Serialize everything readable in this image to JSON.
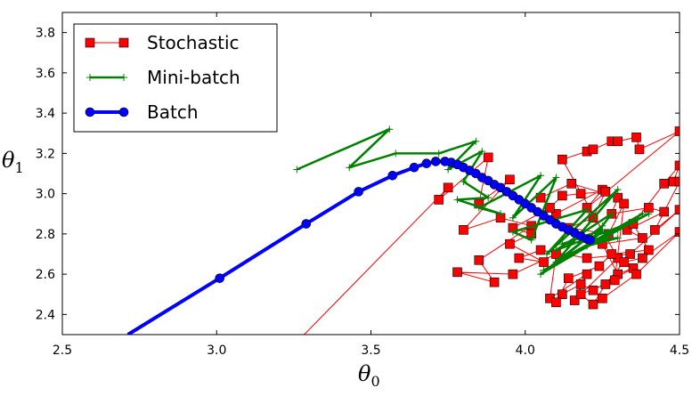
{
  "chart_data": {
    "type": "line",
    "xlabel": "θ",
    "xlabel_sub": "0",
    "ylabel": "θ",
    "ylabel_sub": "1",
    "xlim": [
      2.5,
      4.5
    ],
    "ylim": [
      2.3,
      3.9
    ],
    "xticks": [
      "2.5",
      "3.0",
      "3.5",
      "4.0",
      "4.5"
    ],
    "yticks": [
      "2.4",
      "2.6",
      "2.8",
      "3.0",
      "3.2",
      "3.4",
      "3.6",
      "3.8"
    ],
    "grid": false,
    "legend_position": "top-left",
    "series": [
      {
        "name": "Stochastic",
        "color": "#ff0000",
        "marker": "square",
        "line_width": 1,
        "points": [
          [
            2.9,
            1.7
          ],
          [
            3.75,
            3.03
          ],
          [
            3.72,
            2.97
          ],
          [
            3.88,
            3.18
          ],
          [
            3.85,
            2.95
          ],
          [
            3.95,
            3.07
          ],
          [
            3.8,
            2.82
          ],
          [
            3.92,
            2.88
          ],
          [
            4.02,
            2.84
          ],
          [
            3.85,
            2.67
          ],
          [
            3.9,
            2.56
          ],
          [
            3.78,
            2.61
          ],
          [
            3.96,
            2.6
          ],
          [
            4.1,
            2.7
          ],
          [
            4.08,
            2.48
          ],
          [
            4.2,
            2.6
          ],
          [
            4.16,
            2.47
          ],
          [
            4.3,
            2.68
          ],
          [
            4.12,
            3.17
          ],
          [
            4.2,
            3.21
          ],
          [
            4.22,
            3.22
          ],
          [
            4.28,
            3.26
          ],
          [
            4.3,
            3.26
          ],
          [
            4.36,
            3.28
          ],
          [
            4.37,
            3.22
          ],
          [
            4.5,
            3.31
          ],
          [
            4.2,
            2.93
          ],
          [
            4.25,
            3.02
          ],
          [
            4.1,
            2.9
          ],
          [
            4.05,
            2.98
          ],
          [
            4.15,
            3.05
          ],
          [
            4.3,
            2.98
          ],
          [
            4.28,
            2.9
          ],
          [
            4.4,
            2.93
          ],
          [
            4.45,
            2.91
          ],
          [
            4.33,
            2.82
          ],
          [
            4.38,
            2.78
          ],
          [
            4.25,
            2.75
          ],
          [
            4.3,
            2.6
          ],
          [
            4.35,
            2.63
          ],
          [
            4.22,
            2.52
          ],
          [
            4.18,
            2.55
          ],
          [
            4.12,
            2.5
          ],
          [
            4.1,
            2.46
          ],
          [
            4.14,
            2.58
          ],
          [
            4.24,
            2.64
          ],
          [
            4.28,
            2.7
          ],
          [
            4.4,
            2.72
          ],
          [
            4.35,
            2.85
          ],
          [
            4.45,
            3.05
          ],
          [
            4.5,
            3.14
          ],
          [
            4.48,
            3.06
          ],
          [
            4.5,
            3.06
          ],
          [
            4.42,
            2.82
          ],
          [
            4.5,
            2.92
          ],
          [
            4.34,
            2.7
          ],
          [
            4.2,
            2.68
          ],
          [
            4.05,
            2.72
          ],
          [
            3.98,
            2.68
          ],
          [
            4.06,
            2.66
          ],
          [
            3.95,
            2.75
          ],
          [
            4.02,
            2.8
          ],
          [
            3.96,
            2.83
          ],
          [
            4.08,
            2.93
          ],
          [
            4.12,
            2.99
          ],
          [
            4.18,
            3.0
          ],
          [
            4.26,
            3.01
          ],
          [
            4.22,
            2.88
          ],
          [
            4.14,
            2.83
          ],
          [
            4.27,
            2.8
          ],
          [
            4.32,
            2.95
          ],
          [
            4.29,
            2.57
          ],
          [
            4.18,
            2.5
          ],
          [
            4.22,
            2.45
          ],
          [
            4.26,
            2.55
          ],
          [
            4.32,
            2.66
          ],
          [
            4.38,
            2.68
          ],
          [
            4.5,
            2.81
          ],
          [
            4.36,
            2.6
          ],
          [
            4.25,
            2.48
          ]
        ]
      },
      {
        "name": "Mini-batch",
        "color": "#008000",
        "marker": "plus",
        "line_width": 2.5,
        "points": [
          [
            3.26,
            3.12
          ],
          [
            3.56,
            3.32
          ],
          [
            3.43,
            3.13
          ],
          [
            3.58,
            3.2
          ],
          [
            3.72,
            3.2
          ],
          [
            3.84,
            3.26
          ],
          [
            3.75,
            3.12
          ],
          [
            3.86,
            3.21
          ],
          [
            3.8,
            3.06
          ],
          [
            3.88,
            2.98
          ],
          [
            3.78,
            2.97
          ],
          [
            3.92,
            2.9
          ],
          [
            3.85,
            2.93
          ],
          [
            4.05,
            3.09
          ],
          [
            3.96,
            2.88
          ],
          [
            4.1,
            3.08
          ],
          [
            4.02,
            2.77
          ],
          [
            3.96,
            2.81
          ],
          [
            4.2,
            2.92
          ],
          [
            4.07,
            2.7
          ],
          [
            4.3,
            3.02
          ],
          [
            4.1,
            2.66
          ],
          [
            4.38,
            2.9
          ],
          [
            4.05,
            2.6
          ],
          [
            4.25,
            2.84
          ],
          [
            4.12,
            2.68
          ],
          [
            4.4,
            2.9
          ],
          [
            4.06,
            2.62
          ],
          [
            4.3,
            2.82
          ],
          [
            4.15,
            2.7
          ],
          [
            4.35,
            2.86
          ],
          [
            4.1,
            2.72
          ],
          [
            4.28,
            2.9
          ],
          [
            4.2,
            2.74
          ],
          [
            4.3,
            2.78
          ],
          [
            4.12,
            2.75
          ],
          [
            4.25,
            2.82
          ],
          [
            4.22,
            2.77
          ]
        ]
      },
      {
        "name": "Batch",
        "color": "#0000ff",
        "marker": "circle",
        "line_width": 4,
        "points": [
          [
            2.5,
            2.1
          ],
          [
            3.01,
            2.58
          ],
          [
            3.29,
            2.85
          ],
          [
            3.46,
            3.01
          ],
          [
            3.57,
            3.09
          ],
          [
            3.64,
            3.13
          ],
          [
            3.68,
            3.15
          ],
          [
            3.71,
            3.16
          ],
          [
            3.74,
            3.16
          ],
          [
            3.76,
            3.155
          ],
          [
            3.78,
            3.145
          ],
          [
            3.8,
            3.13
          ],
          [
            3.82,
            3.115
          ],
          [
            3.84,
            3.1
          ],
          [
            3.86,
            3.08
          ],
          [
            3.88,
            3.065
          ],
          [
            3.9,
            3.045
          ],
          [
            3.92,
            3.03
          ],
          [
            3.94,
            3.01
          ],
          [
            3.96,
            2.99
          ],
          [
            3.98,
            2.97
          ],
          [
            4.0,
            2.95
          ],
          [
            4.02,
            2.93
          ],
          [
            4.04,
            2.91
          ],
          [
            4.06,
            2.89
          ],
          [
            4.08,
            2.87
          ],
          [
            4.1,
            2.85
          ],
          [
            4.12,
            2.835
          ],
          [
            4.14,
            2.82
          ],
          [
            4.16,
            2.805
          ],
          [
            4.18,
            2.79
          ],
          [
            4.2,
            2.775
          ],
          [
            4.21,
            2.77
          ]
        ]
      }
    ]
  }
}
